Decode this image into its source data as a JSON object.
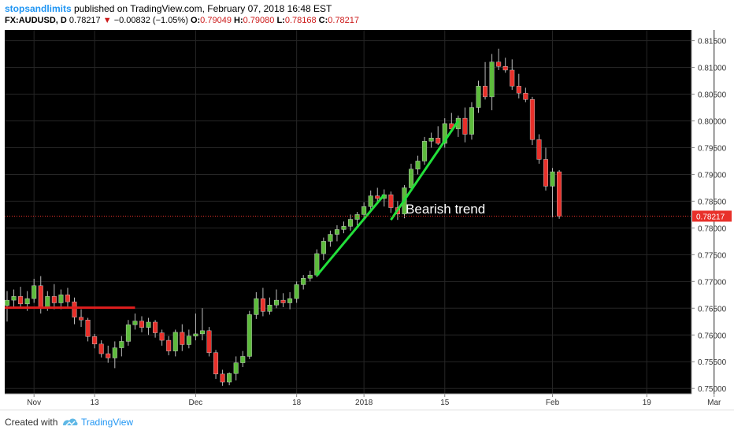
{
  "header": {
    "author": "stopsandlimits",
    "published_text": "published on TradingView.com, February 07, 2018 16:48 EST",
    "symbol": "FX:AUDUSD, D",
    "last": "0.78217",
    "change": "−0.00832 (−1.05%)",
    "o_label": "O:",
    "o_value": "0.79049",
    "h_label": "H:",
    "h_value": "0.79080",
    "l_label": "L:",
    "l_value": "0.78168",
    "c_label": "C:",
    "c_value": "0.78217"
  },
  "footer": {
    "created_with": "Created with",
    "brand": "TradingView"
  },
  "chart_data": {
    "type": "candlestick",
    "title": "",
    "background": "#000000",
    "up_color": "#5dbb3c",
    "down_color": "#e8302a",
    "ylim": [
      0.749,
      0.817
    ],
    "y_ticks": [
      "0.81500",
      "0.81000",
      "0.80500",
      "0.80000",
      "0.79500",
      "0.79000",
      "0.78500",
      "0.78000",
      "0.77500",
      "0.77000",
      "0.76500",
      "0.76000",
      "0.75500",
      "0.75000"
    ],
    "x_ticks": [
      {
        "label": "Nov",
        "index": 4
      },
      {
        "label": "13",
        "index": 13
      },
      {
        "label": "Dec",
        "index": 28
      },
      {
        "label": "18",
        "index": 43
      },
      {
        "label": "2018",
        "index": 53
      },
      {
        "label": "15",
        "index": 65
      },
      {
        "label": "Feb",
        "index": 81
      },
      {
        "label": "19",
        "index": 95
      },
      {
        "label": "Mar",
        "index": 105
      },
      {
        "label": "19",
        "index": 118
      }
    ],
    "candles": [
      {
        "o": 0.7655,
        "h": 0.7682,
        "l": 0.7625,
        "c": 0.7665
      },
      {
        "o": 0.7665,
        "h": 0.7685,
        "l": 0.7652,
        "c": 0.7672
      },
      {
        "o": 0.7672,
        "h": 0.769,
        "l": 0.765,
        "c": 0.7658
      },
      {
        "o": 0.7658,
        "h": 0.7682,
        "l": 0.7645,
        "c": 0.7668
      },
      {
        "o": 0.7668,
        "h": 0.7705,
        "l": 0.766,
        "c": 0.7692
      },
      {
        "o": 0.7692,
        "h": 0.771,
        "l": 0.764,
        "c": 0.765
      },
      {
        "o": 0.765,
        "h": 0.7682,
        "l": 0.7645,
        "c": 0.7672
      },
      {
        "o": 0.7672,
        "h": 0.7695,
        "l": 0.7648,
        "c": 0.766
      },
      {
        "o": 0.766,
        "h": 0.7685,
        "l": 0.7648,
        "c": 0.7675
      },
      {
        "o": 0.7675,
        "h": 0.7688,
        "l": 0.765,
        "c": 0.7662
      },
      {
        "o": 0.7662,
        "h": 0.767,
        "l": 0.762,
        "c": 0.7633
      },
      {
        "o": 0.7633,
        "h": 0.7648,
        "l": 0.7615,
        "c": 0.7628
      },
      {
        "o": 0.7628,
        "h": 0.7632,
        "l": 0.7588,
        "c": 0.7597
      },
      {
        "o": 0.7597,
        "h": 0.7602,
        "l": 0.7575,
        "c": 0.7583
      },
      {
        "o": 0.7583,
        "h": 0.759,
        "l": 0.7558,
        "c": 0.7565
      },
      {
        "o": 0.7565,
        "h": 0.758,
        "l": 0.7548,
        "c": 0.7557
      },
      {
        "o": 0.7557,
        "h": 0.7588,
        "l": 0.7538,
        "c": 0.7576
      },
      {
        "o": 0.7576,
        "h": 0.7598,
        "l": 0.756,
        "c": 0.7588
      },
      {
        "o": 0.7588,
        "h": 0.7628,
        "l": 0.758,
        "c": 0.7619
      },
      {
        "o": 0.7619,
        "h": 0.764,
        "l": 0.761,
        "c": 0.7626
      },
      {
        "o": 0.7626,
        "h": 0.7635,
        "l": 0.7605,
        "c": 0.7614
      },
      {
        "o": 0.7614,
        "h": 0.7632,
        "l": 0.76,
        "c": 0.7624
      },
      {
        "o": 0.7624,
        "h": 0.7628,
        "l": 0.7595,
        "c": 0.7604
      },
      {
        "o": 0.7604,
        "h": 0.761,
        "l": 0.758,
        "c": 0.759
      },
      {
        "o": 0.759,
        "h": 0.7598,
        "l": 0.7562,
        "c": 0.757
      },
      {
        "o": 0.757,
        "h": 0.761,
        "l": 0.756,
        "c": 0.7605
      },
      {
        "o": 0.7605,
        "h": 0.762,
        "l": 0.757,
        "c": 0.7582
      },
      {
        "o": 0.7582,
        "h": 0.761,
        "l": 0.7575,
        "c": 0.7598
      },
      {
        "o": 0.7598,
        "h": 0.764,
        "l": 0.759,
        "c": 0.7602
      },
      {
        "o": 0.7602,
        "h": 0.765,
        "l": 0.759,
        "c": 0.7608
      },
      {
        "o": 0.7608,
        "h": 0.7615,
        "l": 0.756,
        "c": 0.7567
      },
      {
        "o": 0.7567,
        "h": 0.7572,
        "l": 0.7518,
        "c": 0.7527
      },
      {
        "o": 0.7527,
        "h": 0.7535,
        "l": 0.7505,
        "c": 0.7512
      },
      {
        "o": 0.7512,
        "h": 0.753,
        "l": 0.7506,
        "c": 0.7528
      },
      {
        "o": 0.7528,
        "h": 0.756,
        "l": 0.7515,
        "c": 0.7548
      },
      {
        "o": 0.7548,
        "h": 0.757,
        "l": 0.754,
        "c": 0.756
      },
      {
        "o": 0.756,
        "h": 0.7645,
        "l": 0.7555,
        "c": 0.7638
      },
      {
        "o": 0.7638,
        "h": 0.768,
        "l": 0.763,
        "c": 0.7668
      },
      {
        "o": 0.7668,
        "h": 0.7688,
        "l": 0.7635,
        "c": 0.7644
      },
      {
        "o": 0.7644,
        "h": 0.767,
        "l": 0.7638,
        "c": 0.7656
      },
      {
        "o": 0.7656,
        "h": 0.7685,
        "l": 0.765,
        "c": 0.7665
      },
      {
        "o": 0.7665,
        "h": 0.7678,
        "l": 0.7652,
        "c": 0.766
      },
      {
        "o": 0.766,
        "h": 0.768,
        "l": 0.7648,
        "c": 0.7668
      },
      {
        "o": 0.7668,
        "h": 0.77,
        "l": 0.766,
        "c": 0.7694
      },
      {
        "o": 0.7694,
        "h": 0.7712,
        "l": 0.7685,
        "c": 0.7706
      },
      {
        "o": 0.7706,
        "h": 0.772,
        "l": 0.77,
        "c": 0.7712
      },
      {
        "o": 0.7712,
        "h": 0.776,
        "l": 0.7708,
        "c": 0.7752
      },
      {
        "o": 0.7752,
        "h": 0.7782,
        "l": 0.774,
        "c": 0.7775
      },
      {
        "o": 0.7775,
        "h": 0.7795,
        "l": 0.7765,
        "c": 0.7788
      },
      {
        "o": 0.7788,
        "h": 0.7805,
        "l": 0.7775,
        "c": 0.7797
      },
      {
        "o": 0.7797,
        "h": 0.7812,
        "l": 0.779,
        "c": 0.7803
      },
      {
        "o": 0.7803,
        "h": 0.7825,
        "l": 0.7795,
        "c": 0.7816
      },
      {
        "o": 0.7816,
        "h": 0.783,
        "l": 0.7805,
        "c": 0.7825
      },
      {
        "o": 0.7825,
        "h": 0.7848,
        "l": 0.7815,
        "c": 0.784
      },
      {
        "o": 0.784,
        "h": 0.787,
        "l": 0.783,
        "c": 0.786
      },
      {
        "o": 0.786,
        "h": 0.7875,
        "l": 0.7845,
        "c": 0.7855
      },
      {
        "o": 0.7855,
        "h": 0.7872,
        "l": 0.784,
        "c": 0.7862
      },
      {
        "o": 0.7862,
        "h": 0.7868,
        "l": 0.7828,
        "c": 0.7838
      },
      {
        "o": 0.7838,
        "h": 0.785,
        "l": 0.7815,
        "c": 0.7826
      },
      {
        "o": 0.7826,
        "h": 0.788,
        "l": 0.7818,
        "c": 0.7875
      },
      {
        "o": 0.7875,
        "h": 0.792,
        "l": 0.7868,
        "c": 0.791
      },
      {
        "o": 0.791,
        "h": 0.7935,
        "l": 0.79,
        "c": 0.7925
      },
      {
        "o": 0.7925,
        "h": 0.797,
        "l": 0.7918,
        "c": 0.7962
      },
      {
        "o": 0.7962,
        "h": 0.7978,
        "l": 0.795,
        "c": 0.7968
      },
      {
        "o": 0.7968,
        "h": 0.799,
        "l": 0.7955,
        "c": 0.7958
      },
      {
        "o": 0.7958,
        "h": 0.8005,
        "l": 0.795,
        "c": 0.7995
      },
      {
        "o": 0.7995,
        "h": 0.8015,
        "l": 0.798,
        "c": 0.7985
      },
      {
        "o": 0.7985,
        "h": 0.801,
        "l": 0.797,
        "c": 0.8005
      },
      {
        "o": 0.8005,
        "h": 0.8025,
        "l": 0.796,
        "c": 0.7975
      },
      {
        "o": 0.7975,
        "h": 0.8035,
        "l": 0.7965,
        "c": 0.8025
      },
      {
        "o": 0.8025,
        "h": 0.8075,
        "l": 0.8015,
        "c": 0.8065
      },
      {
        "o": 0.8065,
        "h": 0.811,
        "l": 0.804,
        "c": 0.8045
      },
      {
        "o": 0.8045,
        "h": 0.8125,
        "l": 0.802,
        "c": 0.811
      },
      {
        "o": 0.811,
        "h": 0.8135,
        "l": 0.8095,
        "c": 0.8102
      },
      {
        "o": 0.8102,
        "h": 0.8118,
        "l": 0.809,
        "c": 0.8095
      },
      {
        "o": 0.8095,
        "h": 0.8115,
        "l": 0.8058,
        "c": 0.8065
      },
      {
        "o": 0.8065,
        "h": 0.8088,
        "l": 0.8042,
        "c": 0.8052
      },
      {
        "o": 0.8052,
        "h": 0.8062,
        "l": 0.8035,
        "c": 0.804
      },
      {
        "o": 0.804,
        "h": 0.8045,
        "l": 0.7955,
        "c": 0.7965
      },
      {
        "o": 0.7965,
        "h": 0.7975,
        "l": 0.792,
        "c": 0.7928
      },
      {
        "o": 0.7928,
        "h": 0.795,
        "l": 0.787,
        "c": 0.7878
      },
      {
        "o": 0.7878,
        "h": 0.7912,
        "l": 0.782,
        "c": 0.7905
      },
      {
        "o": 0.7905,
        "h": 0.7908,
        "l": 0.7817,
        "c": 0.7822
      }
    ],
    "current_price_label": "0.78217",
    "drawings": {
      "horizontal_line": {
        "color": "#e01e1e",
        "y": 0.7651,
        "x_start_index": 0,
        "x_end_index": 19
      },
      "trend_line_1": {
        "color": "#22e03a",
        "x_start_index": 46,
        "y_start": 0.7711,
        "x_end_index": 56,
        "y_end": 0.7862
      },
      "trend_line_2": {
        "color": "#22e03a",
        "x_start_index": 57,
        "y_start": 0.7815,
        "x_end_index": 67,
        "y_end": 0.8
      }
    },
    "annotation": {
      "text": "Bearish trend",
      "x_index": 62,
      "y": 0.7818
    }
  }
}
